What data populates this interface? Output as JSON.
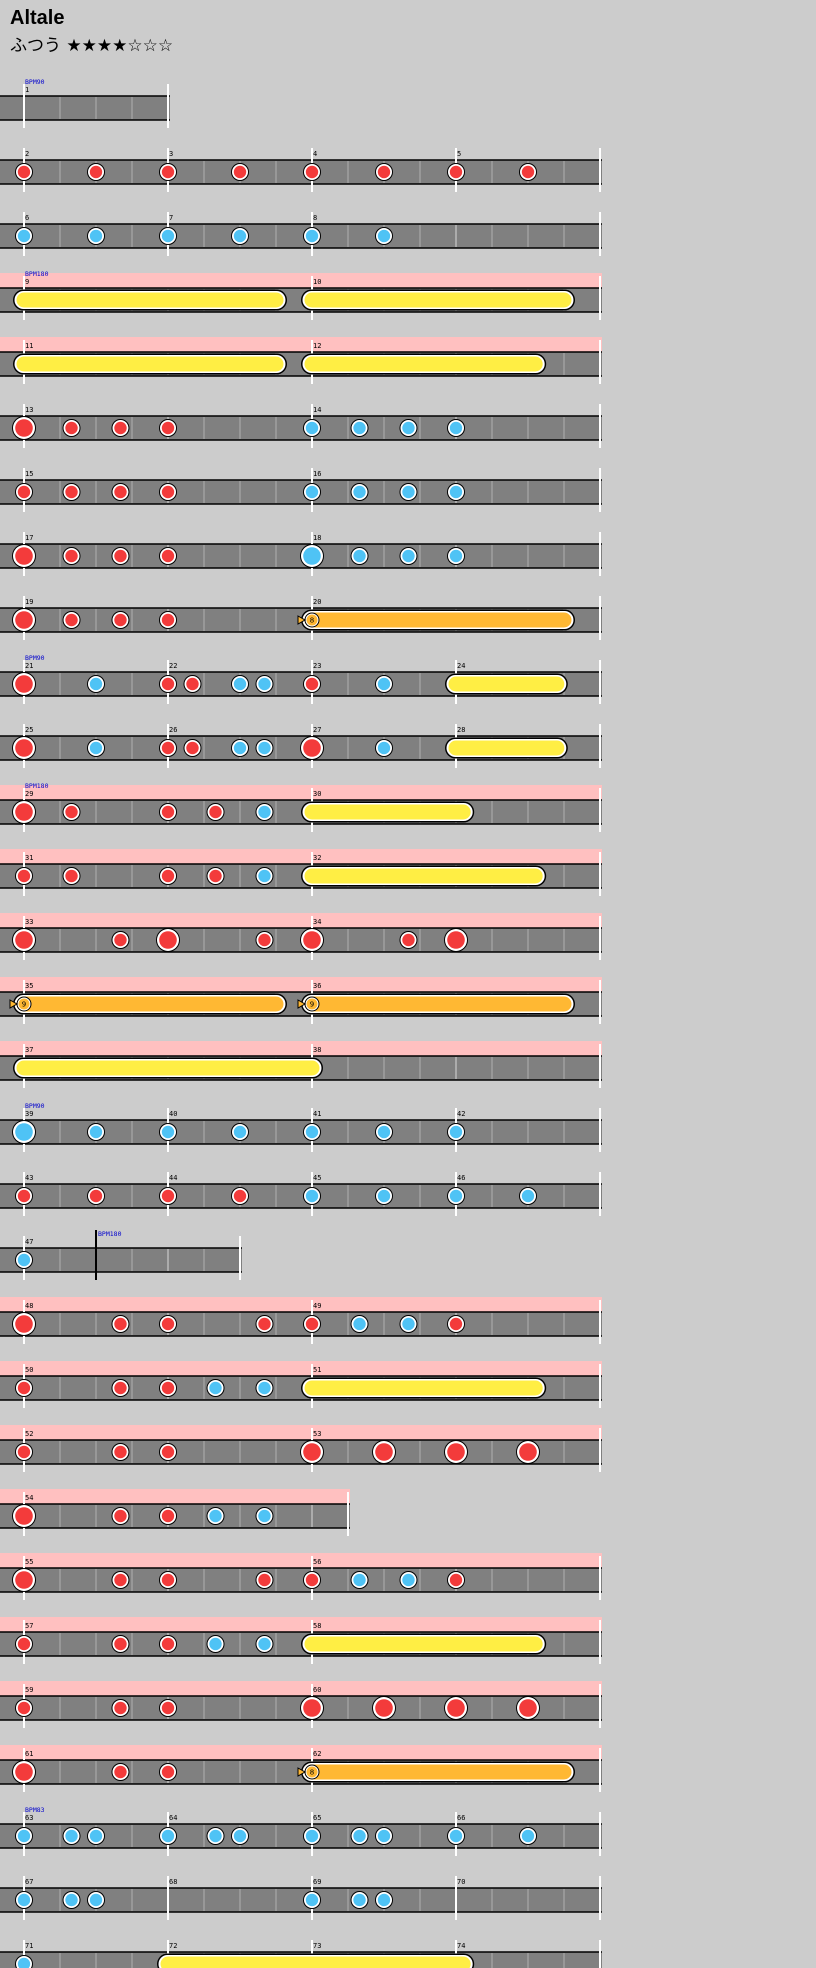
{
  "song": {
    "title": "Altale",
    "difficulty": "ふつう",
    "stars": "★★★★☆☆☆"
  },
  "colors": {
    "background": "#cccccc",
    "lane": "#808080",
    "gogo_band": "#ffc0c0",
    "don": "#f33b3b",
    "ka": "#4fc3f5",
    "roll": "#ffee44",
    "balloon": "#ffb833",
    "bpm_text": "#0000cc"
  },
  "chart_data": {
    "type": "taiko_score",
    "rows": [
      {
        "measures": [
          {
            "num": "1",
            "len": 1
          }
        ],
        "bpm": "BPM90",
        "notes": []
      },
      {
        "measures": [
          {
            "num": "2"
          },
          {
            "num": "3"
          },
          {
            "num": "4"
          },
          {
            "num": "5"
          }
        ],
        "notes": [
          [
            0,
            "d"
          ],
          [
            0.5,
            "d"
          ],
          [
            1,
            "d"
          ],
          [
            1.5,
            "d"
          ],
          [
            2,
            "d"
          ],
          [
            2.5,
            "d"
          ],
          [
            3,
            "d"
          ],
          [
            3.5,
            "d"
          ]
        ]
      },
      {
        "measures": [
          {
            "num": "6"
          },
          {
            "num": "7"
          },
          {
            "num": "8",
            "len": 2
          }
        ],
        "notes": [
          [
            0,
            "k"
          ],
          [
            0.5,
            "k"
          ],
          [
            1,
            "k"
          ],
          [
            1.5,
            "k"
          ],
          [
            2,
            "k"
          ],
          [
            2.5,
            "k"
          ]
        ]
      },
      {
        "measures": [
          {
            "num": "9",
            "len": 2
          },
          {
            "num": "10",
            "len": 2
          }
        ],
        "bpm": "BPM180",
        "gogo": true,
        "notes": [
          [
            0,
            "R",
            1.75
          ],
          [
            2,
            "R",
            1.75
          ]
        ]
      },
      {
        "measures": [
          {
            "num": "11",
            "len": 2
          },
          {
            "num": "12",
            "len": 2
          }
        ],
        "gogo": true,
        "notes": [
          [
            0,
            "R",
            1.75
          ],
          [
            2,
            "R",
            1.55
          ]
        ]
      },
      {
        "measures": [
          {
            "num": "13",
            "len": 2
          },
          {
            "num": "14",
            "len": 2
          }
        ],
        "notes": [
          [
            0,
            "D"
          ],
          [
            0.33,
            "d"
          ],
          [
            0.67,
            "d"
          ],
          [
            1,
            "d"
          ],
          [
            2,
            "k"
          ],
          [
            2.33,
            "k"
          ],
          [
            2.67,
            "k"
          ],
          [
            3,
            "k"
          ]
        ]
      },
      {
        "measures": [
          {
            "num": "15",
            "len": 2
          },
          {
            "num": "16",
            "len": 2
          }
        ],
        "notes": [
          [
            0,
            "d"
          ],
          [
            0.33,
            "d"
          ],
          [
            0.67,
            "d"
          ],
          [
            1,
            "d"
          ],
          [
            2,
            "k"
          ],
          [
            2.33,
            "k"
          ],
          [
            2.67,
            "k"
          ],
          [
            3,
            "k"
          ]
        ]
      },
      {
        "measures": [
          {
            "num": "17",
            "len": 2
          },
          {
            "num": "18",
            "len": 2
          }
        ],
        "notes": [
          [
            0,
            "D"
          ],
          [
            0.33,
            "d"
          ],
          [
            0.67,
            "d"
          ],
          [
            1,
            "d"
          ],
          [
            2,
            "K"
          ],
          [
            2.33,
            "k"
          ],
          [
            2.67,
            "k"
          ],
          [
            3,
            "k"
          ]
        ]
      },
      {
        "measures": [
          {
            "num": "19",
            "len": 2
          },
          {
            "num": "20",
            "len": 2
          }
        ],
        "notes": [
          [
            0,
            "D"
          ],
          [
            0.33,
            "d"
          ],
          [
            0.67,
            "d"
          ],
          [
            1,
            "d"
          ],
          [
            2,
            "B",
            1.75,
            "8"
          ]
        ]
      },
      {
        "measures": [
          {
            "num": "21"
          },
          {
            "num": "22"
          },
          {
            "num": "23"
          },
          {
            "num": "24"
          }
        ],
        "bpm": "BPM90",
        "notes": [
          [
            0,
            "D"
          ],
          [
            0.5,
            "k"
          ],
          [
            1,
            "d"
          ],
          [
            1.17,
            "d"
          ],
          [
            1.5,
            "k"
          ],
          [
            1.67,
            "k"
          ],
          [
            2,
            "d"
          ],
          [
            2.5,
            "k"
          ],
          [
            3,
            "R",
            0.7
          ]
        ]
      },
      {
        "measures": [
          {
            "num": "25"
          },
          {
            "num": "26"
          },
          {
            "num": "27"
          },
          {
            "num": "28"
          }
        ],
        "notes": [
          [
            0,
            "D"
          ],
          [
            0.5,
            "k"
          ],
          [
            1,
            "d"
          ],
          [
            1.17,
            "d"
          ],
          [
            1.5,
            "k"
          ],
          [
            1.67,
            "k"
          ],
          [
            2,
            "D"
          ],
          [
            2.5,
            "k"
          ],
          [
            3,
            "R",
            0.7
          ]
        ]
      },
      {
        "measures": [
          {
            "num": "29",
            "len": 2
          },
          {
            "num": "30",
            "len": 2
          }
        ],
        "bpm": "BPM180",
        "gogo": true,
        "notes": [
          [
            0,
            "D"
          ],
          [
            0.33,
            "d"
          ],
          [
            1,
            "d"
          ],
          [
            1.33,
            "d"
          ],
          [
            1.67,
            "k"
          ],
          [
            2,
            "R",
            1.05
          ]
        ]
      },
      {
        "measures": [
          {
            "num": "31",
            "len": 2
          },
          {
            "num": "32",
            "len": 2
          }
        ],
        "gogo": true,
        "notes": [
          [
            0,
            "d"
          ],
          [
            0.33,
            "d"
          ],
          [
            1,
            "d"
          ],
          [
            1.33,
            "d"
          ],
          [
            1.67,
            "k"
          ],
          [
            2,
            "R",
            1.55
          ]
        ]
      },
      {
        "measures": [
          {
            "num": "33",
            "len": 2
          },
          {
            "num": "34",
            "len": 2
          }
        ],
        "gogo": true,
        "notes": [
          [
            0,
            "D"
          ],
          [
            0.67,
            "d"
          ],
          [
            1,
            "D"
          ],
          [
            1.67,
            "d"
          ],
          [
            2,
            "D"
          ],
          [
            2.67,
            "d"
          ],
          [
            3,
            "D"
          ]
        ]
      },
      {
        "measures": [
          {
            "num": "35",
            "len": 2
          },
          {
            "num": "36",
            "len": 2
          }
        ],
        "gogo": true,
        "notes": [
          [
            0,
            "B",
            1.75,
            "9"
          ],
          [
            2,
            "B",
            1.75,
            "9"
          ]
        ]
      },
      {
        "measures": [
          {
            "num": "37",
            "len": 2
          },
          {
            "num": "38",
            "len": 2
          }
        ],
        "gogo": true,
        "notes": [
          [
            0,
            "R",
            2
          ]
        ]
      },
      {
        "measures": [
          {
            "num": "39"
          },
          {
            "num": "40"
          },
          {
            "num": "41"
          },
          {
            "num": "42"
          }
        ],
        "bpm": "BPM90",
        "notes": [
          [
            0,
            "K"
          ],
          [
            0.5,
            "k"
          ],
          [
            1,
            "k"
          ],
          [
            1.5,
            "k"
          ],
          [
            2,
            "k"
          ],
          [
            2.5,
            "k"
          ],
          [
            3,
            "k"
          ]
        ]
      },
      {
        "measures": [
          {
            "num": "43"
          },
          {
            "num": "44"
          },
          {
            "num": "45"
          },
          {
            "num": "46"
          }
        ],
        "notes": [
          [
            0,
            "d"
          ],
          [
            0.5,
            "d"
          ],
          [
            1,
            "d"
          ],
          [
            1.5,
            "d"
          ],
          [
            2,
            "k"
          ],
          [
            2.5,
            "k"
          ],
          [
            3,
            "k"
          ],
          [
            3.5,
            "k"
          ]
        ]
      },
      {
        "measures": [
          {
            "num": "47",
            "len": 0.5
          },
          {
            "num": "",
            "len": 1.0,
            "bpm": "BPM180"
          }
        ],
        "notes": [
          [
            0,
            "k"
          ]
        ]
      },
      {
        "measures": [
          {
            "num": "48",
            "len": 2
          },
          {
            "num": "49",
            "len": 2
          }
        ],
        "gogo": true,
        "notes": [
          [
            0,
            "D"
          ],
          [
            0.67,
            "d"
          ],
          [
            1,
            "d"
          ],
          [
            1.67,
            "d"
          ],
          [
            2,
            "d"
          ],
          [
            2.33,
            "k"
          ],
          [
            2.67,
            "k"
          ],
          [
            3,
            "d"
          ]
        ]
      },
      {
        "measures": [
          {
            "num": "50",
            "len": 2
          },
          {
            "num": "51",
            "len": 2
          }
        ],
        "gogo": true,
        "notes": [
          [
            0,
            "d"
          ],
          [
            0.67,
            "d"
          ],
          [
            1,
            "d"
          ],
          [
            1.33,
            "k"
          ],
          [
            1.67,
            "k"
          ],
          [
            2,
            "R",
            1.55
          ]
        ]
      },
      {
        "measures": [
          {
            "num": "52",
            "len": 2
          },
          {
            "num": "53",
            "len": 2
          }
        ],
        "gogo": true,
        "notes": [
          [
            0,
            "d"
          ],
          [
            0.67,
            "d"
          ],
          [
            1,
            "d"
          ],
          [
            2,
            "D"
          ],
          [
            2.5,
            "D"
          ],
          [
            3,
            "D"
          ],
          [
            3.5,
            "D"
          ]
        ]
      },
      {
        "measures": [
          {
            "num": "54",
            "len": 2.25
          }
        ],
        "gogo": true,
        "notes": [
          [
            0,
            "D"
          ],
          [
            0.67,
            "d"
          ],
          [
            1,
            "d"
          ],
          [
            1.33,
            "k"
          ],
          [
            1.67,
            "k"
          ]
        ]
      },
      {
        "measures": [
          {
            "num": "55",
            "len": 2
          },
          {
            "num": "56",
            "len": 2
          }
        ],
        "gogo": true,
        "notes": [
          [
            0,
            "D"
          ],
          [
            0.67,
            "d"
          ],
          [
            1,
            "d"
          ],
          [
            1.67,
            "d"
          ],
          [
            2,
            "d"
          ],
          [
            2.33,
            "k"
          ],
          [
            2.67,
            "k"
          ],
          [
            3,
            "d"
          ]
        ]
      },
      {
        "measures": [
          {
            "num": "57",
            "len": 2
          },
          {
            "num": "58",
            "len": 2
          }
        ],
        "gogo": true,
        "notes": [
          [
            0,
            "d"
          ],
          [
            0.67,
            "d"
          ],
          [
            1,
            "d"
          ],
          [
            1.33,
            "k"
          ],
          [
            1.67,
            "k"
          ],
          [
            2,
            "R",
            1.55
          ]
        ]
      },
      {
        "measures": [
          {
            "num": "59",
            "len": 2
          },
          {
            "num": "60",
            "len": 2
          }
        ],
        "gogo": true,
        "notes": [
          [
            0,
            "d"
          ],
          [
            0.67,
            "d"
          ],
          [
            1,
            "d"
          ],
          [
            2,
            "D"
          ],
          [
            2.5,
            "D"
          ],
          [
            3,
            "D"
          ],
          [
            3.5,
            "D"
          ]
        ]
      },
      {
        "measures": [
          {
            "num": "61",
            "len": 2
          },
          {
            "num": "62",
            "len": 2
          }
        ],
        "gogo": true,
        "notes": [
          [
            0,
            "D"
          ],
          [
            0.67,
            "d"
          ],
          [
            1,
            "d"
          ],
          [
            2,
            "B",
            1.75,
            "8"
          ]
        ]
      },
      {
        "measures": [
          {
            "num": "63"
          },
          {
            "num": "64"
          },
          {
            "num": "65"
          },
          {
            "num": "66"
          }
        ],
        "bpm": "BPM83",
        "notes": [
          [
            0,
            "k"
          ],
          [
            0.33,
            "k"
          ],
          [
            0.5,
            "k"
          ],
          [
            1,
            "k"
          ],
          [
            1.33,
            "k"
          ],
          [
            1.5,
            "k"
          ],
          [
            2,
            "k"
          ],
          [
            2.33,
            "k"
          ],
          [
            2.5,
            "k"
          ],
          [
            3,
            "k"
          ],
          [
            3.5,
            "k"
          ]
        ]
      },
      {
        "measures": [
          {
            "num": "67"
          },
          {
            "num": "68"
          },
          {
            "num": "69"
          },
          {
            "num": "70"
          }
        ],
        "notes": [
          [
            0,
            "k"
          ],
          [
            0.33,
            "k"
          ],
          [
            0.5,
            "k"
          ],
          [
            2,
            "k"
          ],
          [
            2.33,
            "k"
          ],
          [
            2.5,
            "k"
          ]
        ]
      },
      {
        "measures": [
          {
            "num": "71"
          },
          {
            "num": "72"
          },
          {
            "num": "73"
          },
          {
            "num": "74"
          }
        ],
        "notes": [
          [
            0,
            "k"
          ],
          [
            1,
            "R",
            2.05
          ]
        ]
      }
    ]
  }
}
